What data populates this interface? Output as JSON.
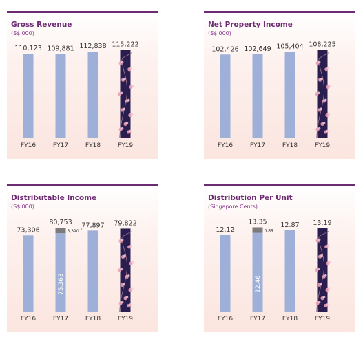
{
  "chart_data": [
    {
      "type": "bar",
      "title": "Gross Revenue",
      "subtitle": "(S$'000)",
      "categories": [
        "FY16",
        "FY17",
        "FY18",
        "FY19"
      ],
      "values": [
        110123,
        109881,
        112838,
        115222
      ],
      "value_labels": [
        "110,123",
        "109,881",
        "112,838",
        "115,222"
      ],
      "ylim": [
        0,
        130000
      ],
      "highlight_index": 3,
      "grid": false
    },
    {
      "type": "bar",
      "title": "Net Property Income",
      "subtitle": "(S$'000)",
      "categories": [
        "FY16",
        "FY17",
        "FY18",
        "FY19"
      ],
      "values": [
        102426,
        102649,
        105404,
        108225
      ],
      "value_labels": [
        "102,426",
        "102,649",
        "105,404",
        "108,225"
      ],
      "ylim": [
        0,
        122000
      ],
      "highlight_index": 3,
      "grid": false
    },
    {
      "type": "bar",
      "title": "Distributable Income",
      "subtitle": "(S$'000)",
      "categories": [
        "FY16",
        "FY17",
        "FY18",
        "FY19"
      ],
      "values": [
        73306,
        80753,
        77897,
        79822
      ],
      "value_labels": [
        "73,306",
        "80,753",
        "77,897",
        "79,822"
      ],
      "stack": {
        "index": 1,
        "base": 75363,
        "base_label": "75,363",
        "top": 5390,
        "top_label": "5,390"
      },
      "ylim": [
        0,
        96000
      ],
      "highlight_index": 3,
      "grid": false
    },
    {
      "type": "bar",
      "title": "Distribution Per Unit",
      "subtitle": "(Singapore Cents)",
      "categories": [
        "FY16",
        "FY17",
        "FY18",
        "FY19"
      ],
      "values": [
        12.12,
        13.35,
        12.87,
        13.19
      ],
      "value_labels": [
        "12.12",
        "13.35",
        "12.87",
        "13.19"
      ],
      "stack": {
        "index": 1,
        "base": 12.46,
        "base_label": "12.46",
        "top": 0.89,
        "top_label": "0.89"
      },
      "ylim": [
        0,
        15.8
      ],
      "highlight_index": 3,
      "grid": false
    }
  ],
  "colors": {
    "bar": "#9fb0d8",
    "highlight": "#2a1d4f",
    "stack_top": "#7b7b7b",
    "title": "#6d2b73",
    "text": "#333333",
    "blossom": "#e9a0b6"
  },
  "footnote_marker": "1"
}
